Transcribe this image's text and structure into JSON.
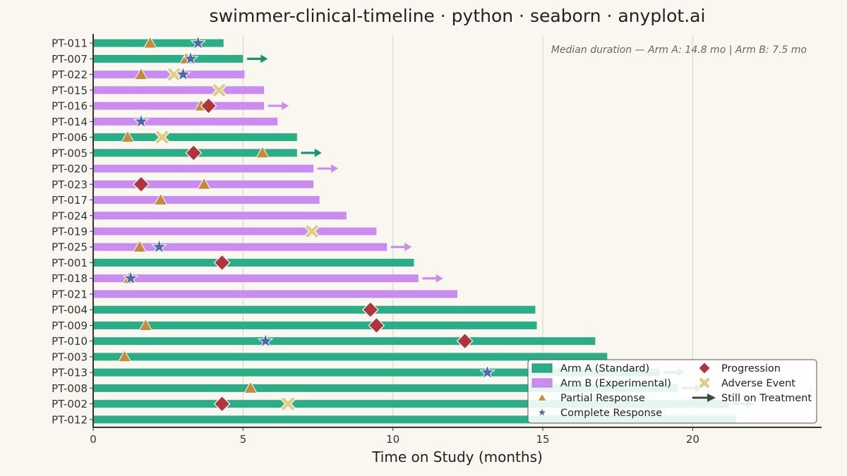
{
  "chart_data": {
    "type": "bar",
    "title": "swimmer-clinical-timeline · python · seaborn · anyplot.ai",
    "xlabel": "Time on Study (months)",
    "ylabel": "",
    "xlim": [
      0,
      24.3
    ],
    "xticks": [
      0,
      5,
      10,
      15,
      20
    ],
    "grid": "vertical",
    "legend_placement": "bottom-right",
    "annotation": "Median duration — Arm A: 14.8 mo  |  Arm B: 7.5 mo",
    "colors": {
      "arm_a": "#2BAE86",
      "arm_b": "#C98DF2",
      "partial_response": "#C7893A",
      "complete_response": "#4A6BA8",
      "progression": "#B0343C",
      "adverse_event": "#E0CD82",
      "arrow_dark": "#444444"
    },
    "series": [
      {
        "name": "Arm A (Standard)"
      },
      {
        "name": "Arm B (Experimental)"
      }
    ],
    "legend": {
      "arm_a": "Arm A (Standard)",
      "arm_b": "Arm B (Experimental)",
      "partial": "Partial Response",
      "complete": "Complete Response",
      "progression": "Progression",
      "adverse": "Adverse Event",
      "ongoing": "Still on Treatment"
    },
    "patients": [
      {
        "id": "PT-011",
        "arm": "A",
        "duration": 4.35,
        "ongoing": false,
        "events": [
          {
            "type": "partial",
            "t": 1.9
          },
          {
            "type": "complete",
            "t": 3.5
          }
        ]
      },
      {
        "id": "PT-007",
        "arm": "A",
        "duration": 5.0,
        "ongoing": true,
        "events": [
          {
            "type": "partial",
            "t": 3.1
          },
          {
            "type": "complete",
            "t": 3.25
          }
        ]
      },
      {
        "id": "PT-022",
        "arm": "B",
        "duration": 5.05,
        "ongoing": false,
        "events": [
          {
            "type": "partial",
            "t": 1.6
          },
          {
            "type": "adverse",
            "t": 2.7
          },
          {
            "type": "complete",
            "t": 3.0
          }
        ]
      },
      {
        "id": "PT-015",
        "arm": "B",
        "duration": 5.7,
        "ongoing": false,
        "events": [
          {
            "type": "adverse",
            "t": 4.2
          }
        ]
      },
      {
        "id": "PT-016",
        "arm": "B",
        "duration": 5.7,
        "ongoing": true,
        "events": [
          {
            "type": "partial",
            "t": 3.6
          },
          {
            "type": "progression",
            "t": 3.85
          }
        ]
      },
      {
        "id": "PT-014",
        "arm": "B",
        "duration": 6.15,
        "ongoing": false,
        "events": [
          {
            "type": "complete",
            "t": 1.6
          }
        ]
      },
      {
        "id": "PT-006",
        "arm": "A",
        "duration": 6.8,
        "ongoing": false,
        "events": [
          {
            "type": "partial",
            "t": 1.15
          },
          {
            "type": "adverse",
            "t": 2.3
          }
        ]
      },
      {
        "id": "PT-005",
        "arm": "A",
        "duration": 6.8,
        "ongoing": true,
        "events": [
          {
            "type": "progression",
            "t": 3.35
          },
          {
            "type": "partial",
            "t": 5.65
          }
        ]
      },
      {
        "id": "PT-020",
        "arm": "B",
        "duration": 7.35,
        "ongoing": true,
        "events": []
      },
      {
        "id": "PT-023",
        "arm": "B",
        "duration": 7.35,
        "ongoing": false,
        "events": [
          {
            "type": "progression",
            "t": 1.6
          },
          {
            "type": "partial",
            "t": 3.7
          }
        ]
      },
      {
        "id": "PT-017",
        "arm": "B",
        "duration": 7.55,
        "ongoing": false,
        "events": [
          {
            "type": "partial",
            "t": 2.25
          }
        ]
      },
      {
        "id": "PT-024",
        "arm": "B",
        "duration": 8.45,
        "ongoing": false,
        "events": []
      },
      {
        "id": "PT-019",
        "arm": "B",
        "duration": 9.45,
        "ongoing": false,
        "events": [
          {
            "type": "adverse",
            "t": 7.3
          }
        ]
      },
      {
        "id": "PT-025",
        "arm": "B",
        "duration": 9.8,
        "ongoing": true,
        "events": [
          {
            "type": "partial",
            "t": 1.55
          },
          {
            "type": "complete",
            "t": 2.2
          }
        ]
      },
      {
        "id": "PT-001",
        "arm": "A",
        "duration": 10.7,
        "ongoing": false,
        "events": [
          {
            "type": "progression",
            "t": 4.3
          }
        ]
      },
      {
        "id": "PT-018",
        "arm": "B",
        "duration": 10.85,
        "ongoing": true,
        "events": [
          {
            "type": "partial",
            "t": 1.2
          },
          {
            "type": "complete",
            "t": 1.25
          }
        ]
      },
      {
        "id": "PT-021",
        "arm": "B",
        "duration": 12.15,
        "ongoing": false,
        "events": []
      },
      {
        "id": "PT-004",
        "arm": "A",
        "duration": 14.75,
        "ongoing": false,
        "events": [
          {
            "type": "progression",
            "t": 9.25
          }
        ]
      },
      {
        "id": "PT-009",
        "arm": "A",
        "duration": 14.8,
        "ongoing": false,
        "events": [
          {
            "type": "partial",
            "t": 1.75
          },
          {
            "type": "progression",
            "t": 9.45
          }
        ]
      },
      {
        "id": "PT-010",
        "arm": "A",
        "duration": 16.75,
        "ongoing": false,
        "events": [
          {
            "type": "complete",
            "t": 5.75
          },
          {
            "type": "progression",
            "t": 12.4
          }
        ]
      },
      {
        "id": "PT-003",
        "arm": "A",
        "duration": 17.15,
        "ongoing": false,
        "events": [
          {
            "type": "partial",
            "t": 1.05
          }
        ]
      },
      {
        "id": "PT-013",
        "arm": "A",
        "duration": 18.9,
        "ongoing": true,
        "events": [
          {
            "type": "complete",
            "t": 13.15
          }
        ]
      },
      {
        "id": "PT-008",
        "arm": "A",
        "duration": 19.5,
        "ongoing": true,
        "events": [
          {
            "type": "partial",
            "t": 5.25
          }
        ]
      },
      {
        "id": "PT-002",
        "arm": "A",
        "duration": 21.2,
        "ongoing": true,
        "events": [
          {
            "type": "progression",
            "t": 4.3
          },
          {
            "type": "adverse",
            "t": 6.5
          }
        ]
      },
      {
        "id": "PT-012",
        "arm": "A",
        "duration": 21.45,
        "ongoing": false,
        "events": []
      }
    ]
  }
}
